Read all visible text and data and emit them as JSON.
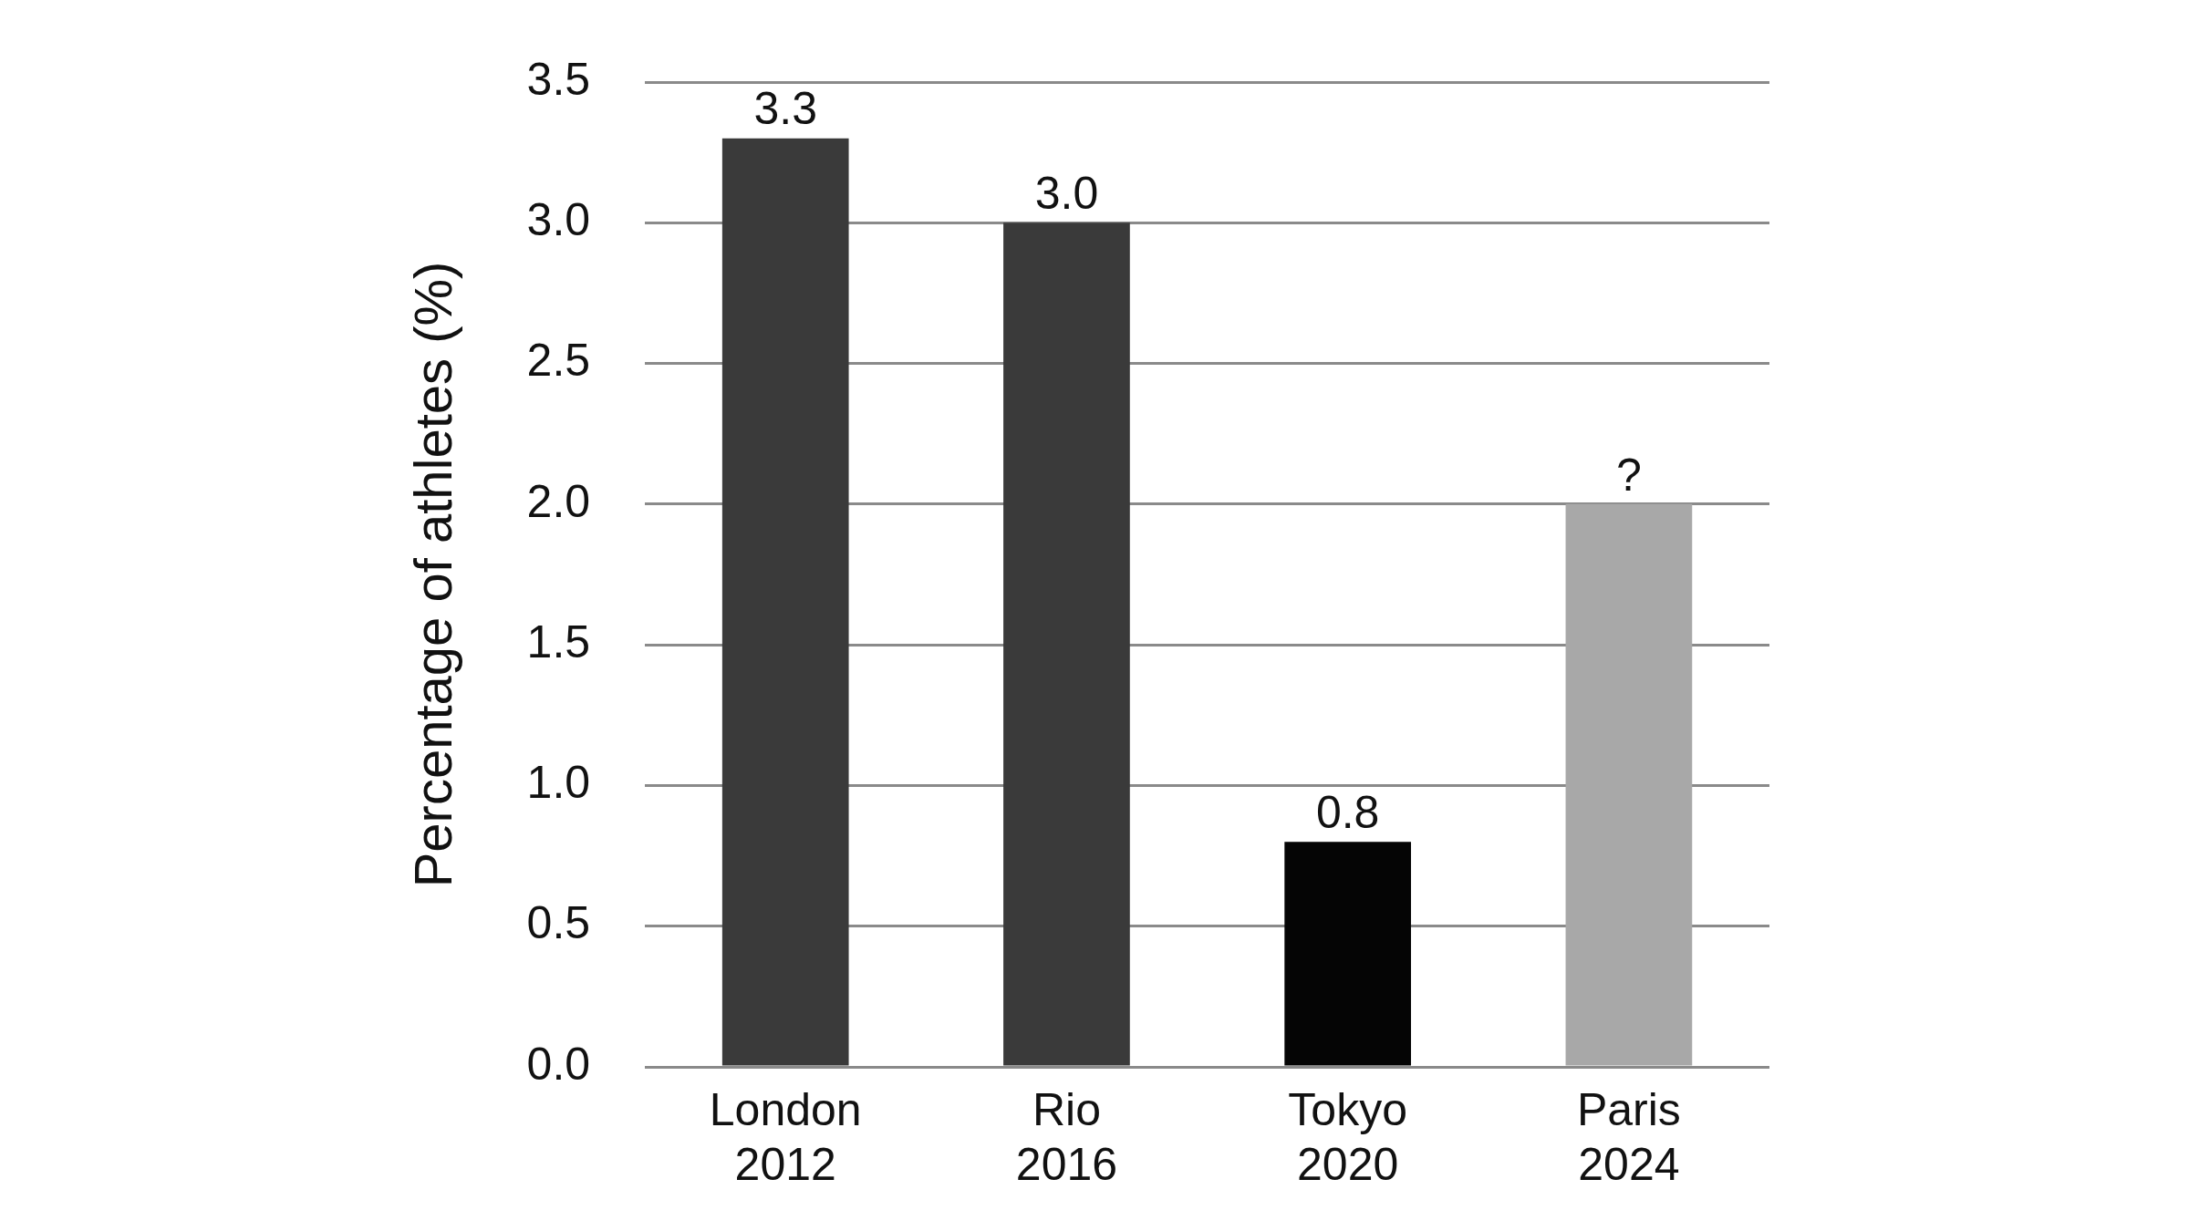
{
  "chart_data": {
    "type": "bar",
    "ylabel": "Percentage of athletes (%)",
    "categories": [
      "London\n2012",
      "Rio\n2016",
      "Tokyo\n2020",
      "Paris\n2024"
    ],
    "values": [
      3.3,
      3.0,
      0.8,
      2.0
    ],
    "colors": [
      "#3a3a3a",
      "#3a3a3a",
      "#050505",
      "#a8a8a8"
    ],
    "value_labels": [
      "3.3",
      "3.0",
      "0.8",
      "?"
    ],
    "ylim": [
      0,
      3.5
    ],
    "yticks": [
      {
        "value": 0,
        "label": "0.0"
      },
      {
        "value": 0.5,
        "label": "0.5"
      },
      {
        "value": 1,
        "label": "1.0"
      },
      {
        "value": 1.5,
        "label": "1.5"
      },
      {
        "value": 2,
        "label": "2.0"
      },
      {
        "value": 2.5,
        "label": "2.5"
      },
      {
        "value": 3,
        "label": "3.0"
      },
      {
        "value": 3.5,
        "label": "3.5"
      }
    ],
    "grid": "y",
    "legend": false
  }
}
